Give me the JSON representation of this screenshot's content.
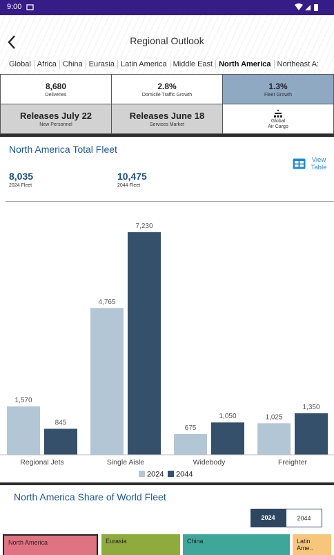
{
  "status_bar": {
    "time": "9:00"
  },
  "header": {
    "title": "Regional Outlook"
  },
  "tabs": [
    {
      "label": "Global"
    },
    {
      "label": "Africa"
    },
    {
      "label": "China"
    },
    {
      "label": "Eurasia"
    },
    {
      "label": "Latin America"
    },
    {
      "label": "Middle East"
    },
    {
      "label": "North America",
      "selected": true
    },
    {
      "label": "Northeast A:"
    }
  ],
  "cards": [
    {
      "value": "8,680",
      "label": "Deliveries"
    },
    {
      "value": "2.8%",
      "label": "Domicile Traffic Growth"
    },
    {
      "value": "1.3%",
      "label": "Fleet Growth",
      "selected": true
    },
    {
      "value": "Releases July 22",
      "label": "New Personnel",
      "disabled": true
    },
    {
      "value": "Releases June 18",
      "label": "Services Market",
      "disabled": true
    },
    {
      "lines": [
        "Global",
        "Air Cargo"
      ]
    }
  ],
  "fleet_section": {
    "title": "North America Total Fleet",
    "view_table": [
      "View",
      "Table"
    ],
    "stats": [
      {
        "value": "8,035",
        "label": "2024 Fleet"
      },
      {
        "value": "10,475",
        "label": "2044 Fleet"
      }
    ]
  },
  "chart_data": {
    "type": "bar",
    "categories": [
      "Regional Jets",
      "Single Aisle",
      "Widebody",
      "Freighter"
    ],
    "series": [
      {
        "name": "2024",
        "color": "#b3c6d6",
        "values": [
          1570,
          4765,
          675,
          1025
        ],
        "value_labels": [
          "1,570",
          "4,765",
          "675",
          "1,025"
        ]
      },
      {
        "name": "2044",
        "color": "#34506a",
        "values": [
          845,
          7230,
          1050,
          1350
        ],
        "value_labels": [
          "845",
          "7,230",
          "1,050",
          "1,350"
        ]
      }
    ],
    "legend": "bottom"
  },
  "share_section": {
    "title": "North America Share of World Fleet",
    "toggle": [
      {
        "label": "2024",
        "selected": true
      },
      {
        "label": "2044"
      }
    ],
    "tiles": [
      {
        "label": "North America",
        "color": "#e07382",
        "selected": true
      },
      {
        "label": "Eurasia",
        "color": "#8fab3d"
      },
      {
        "label": "China",
        "color": "#3fa69a"
      },
      {
        "label": "Latin Ame..",
        "color": "#f6c67c"
      }
    ]
  }
}
